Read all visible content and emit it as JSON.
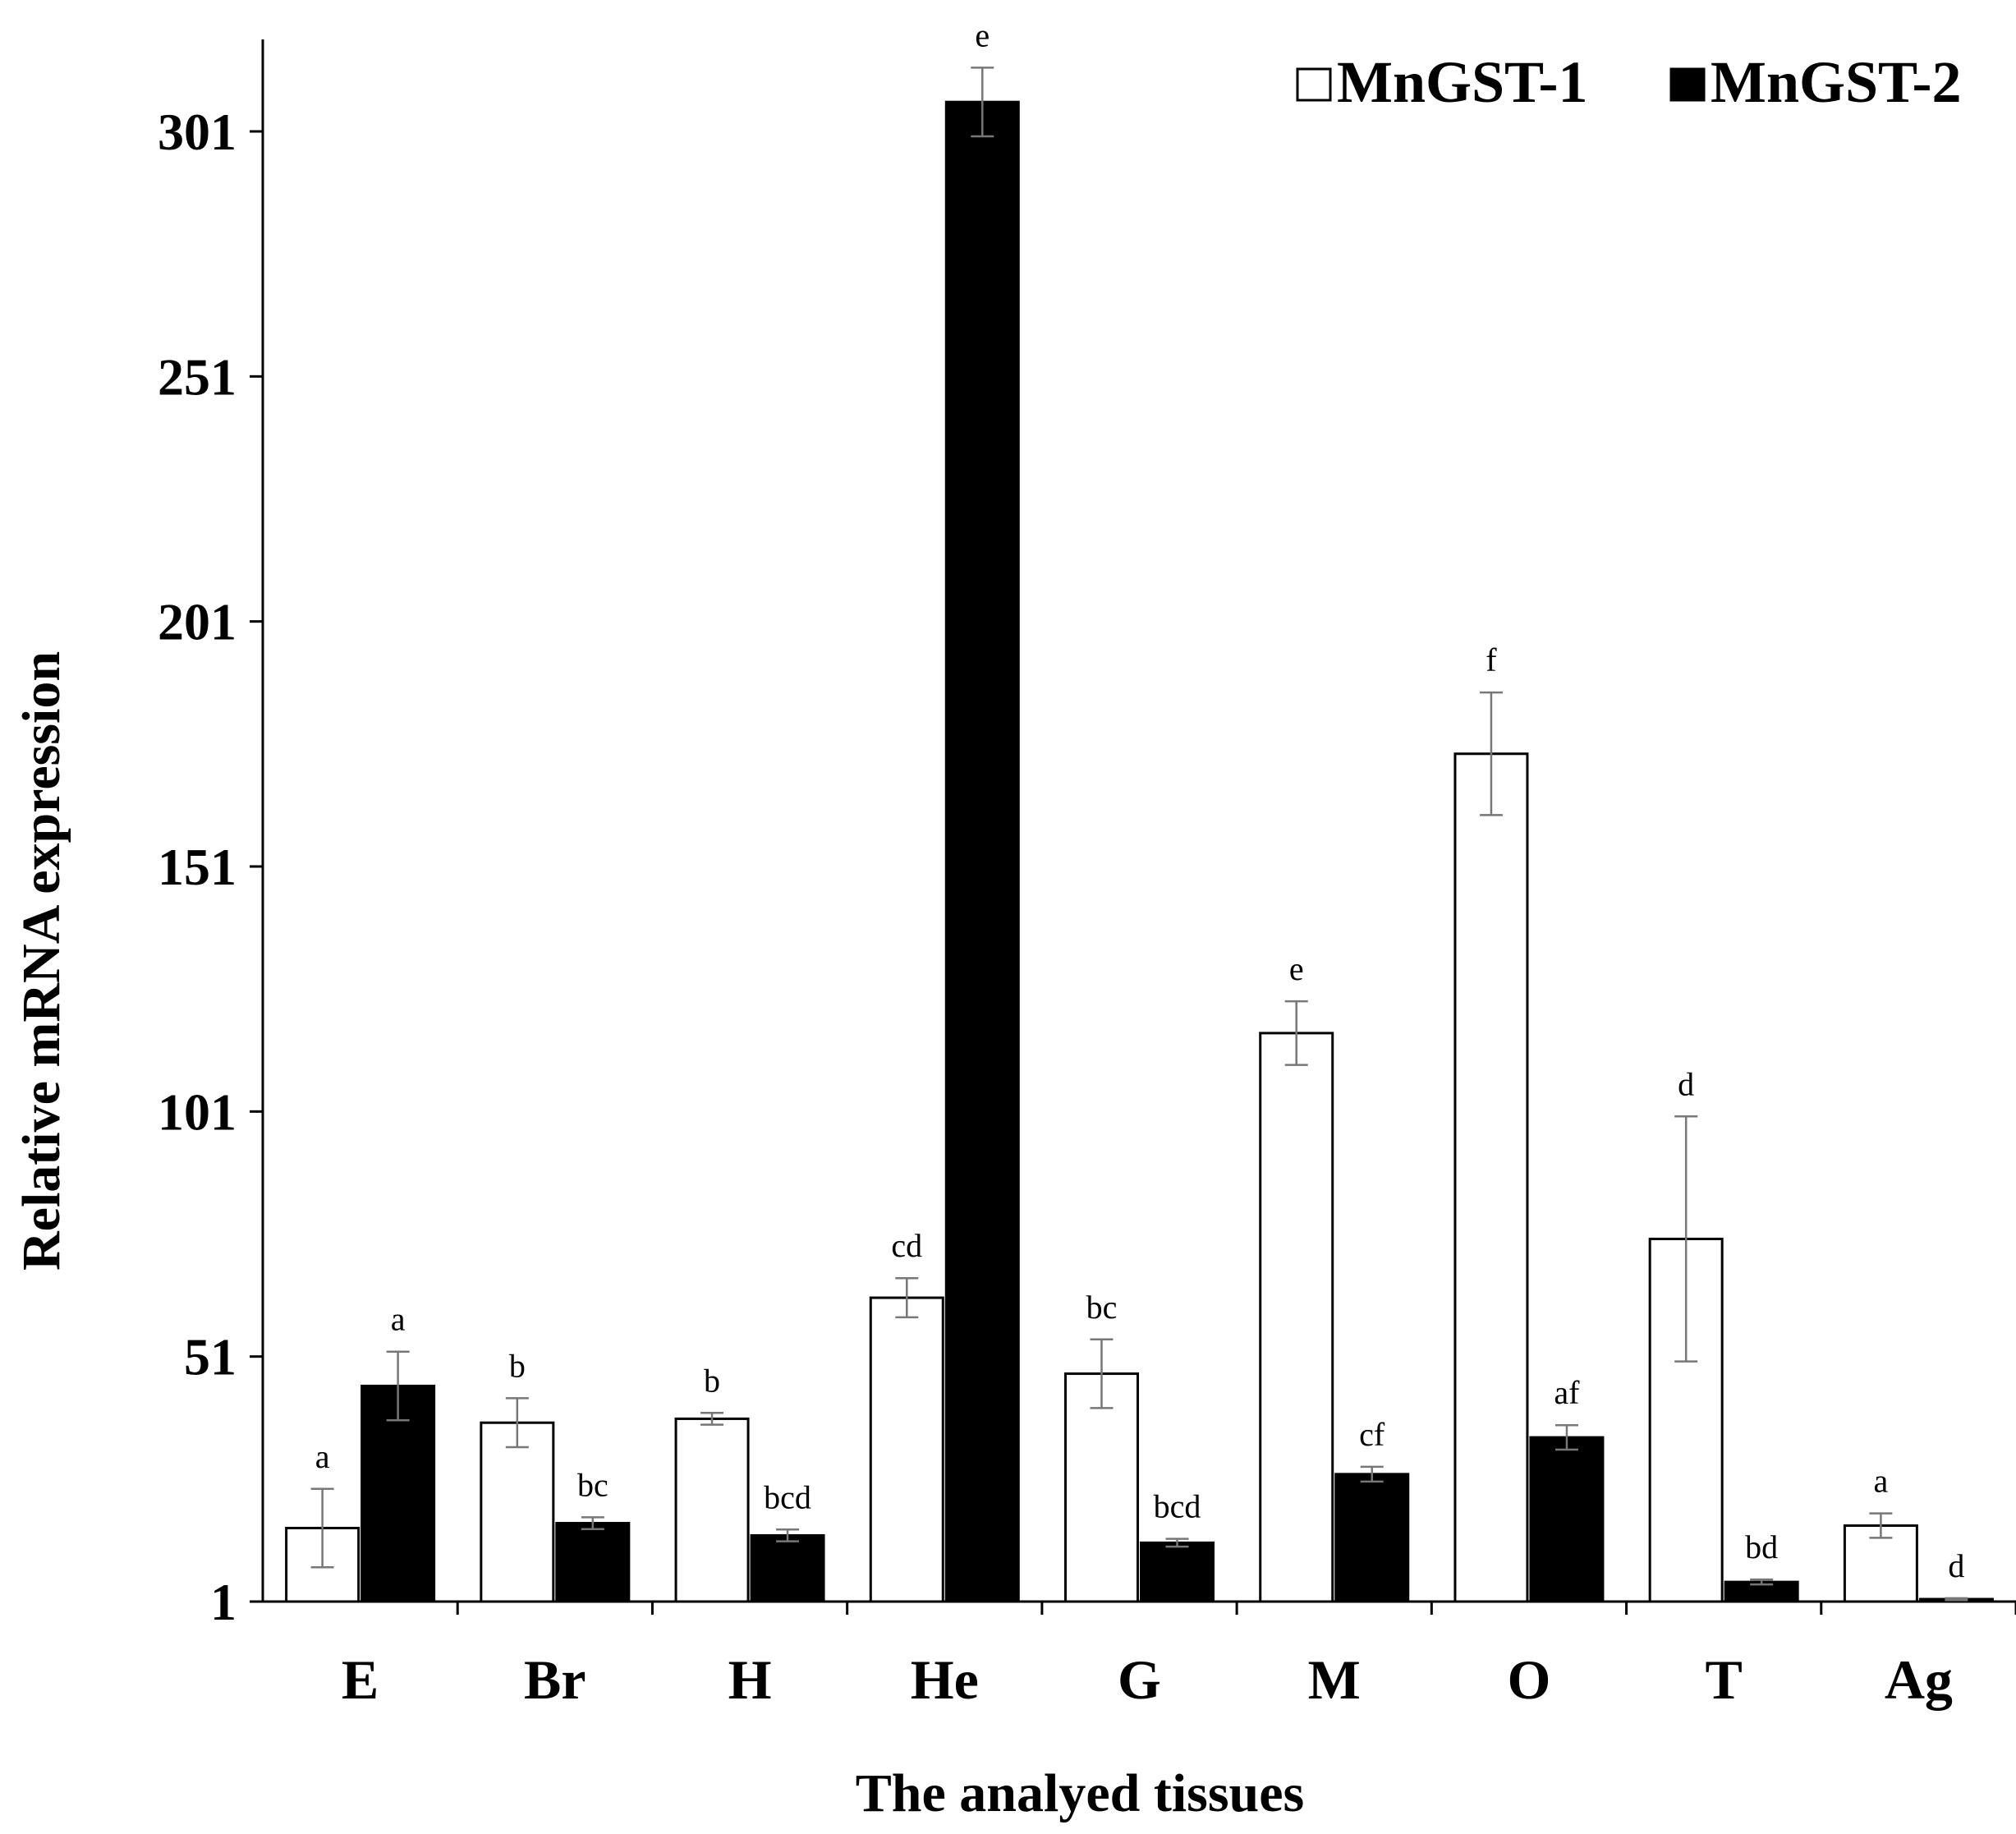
{
  "chart_data": {
    "type": "bar",
    "title": "",
    "xlabel": "The analyed tissues",
    "ylabel": "Relative mRNA expression",
    "ylim": [
      1,
      325
    ],
    "yticks": [
      1,
      51,
      101,
      151,
      201,
      251,
      301
    ],
    "categories": [
      "E",
      "Br",
      "H",
      "He",
      "G",
      "M",
      "O",
      "T",
      "Ag"
    ],
    "legend": {
      "position": "top-right"
    },
    "series": [
      {
        "name": "MnGST-1",
        "color": "#ffffff",
        "values": [
          16,
          37.5,
          38.3,
          63,
          47.5,
          117,
          174,
          75,
          16.5
        ],
        "errors": [
          8,
          5,
          1.2,
          4,
          7,
          6.5,
          12.5,
          25,
          2.5
        ],
        "sig_labels": [
          "a",
          "b",
          "b",
          "cd",
          "bc",
          "e",
          "f",
          "d",
          "a"
        ]
      },
      {
        "name": "MnGST-2",
        "color": "#000000",
        "values": [
          45,
          17,
          14.5,
          307,
          13,
          27,
          34.5,
          5,
          1.5
        ],
        "errors": [
          7,
          1.2,
          1.2,
          7,
          0.8,
          1.5,
          2.5,
          0.5,
          0.2
        ],
        "sig_labels": [
          "a",
          "bc",
          "bcd",
          "e",
          "bcd",
          "cf",
          "af",
          "bd",
          "d"
        ]
      }
    ]
  }
}
